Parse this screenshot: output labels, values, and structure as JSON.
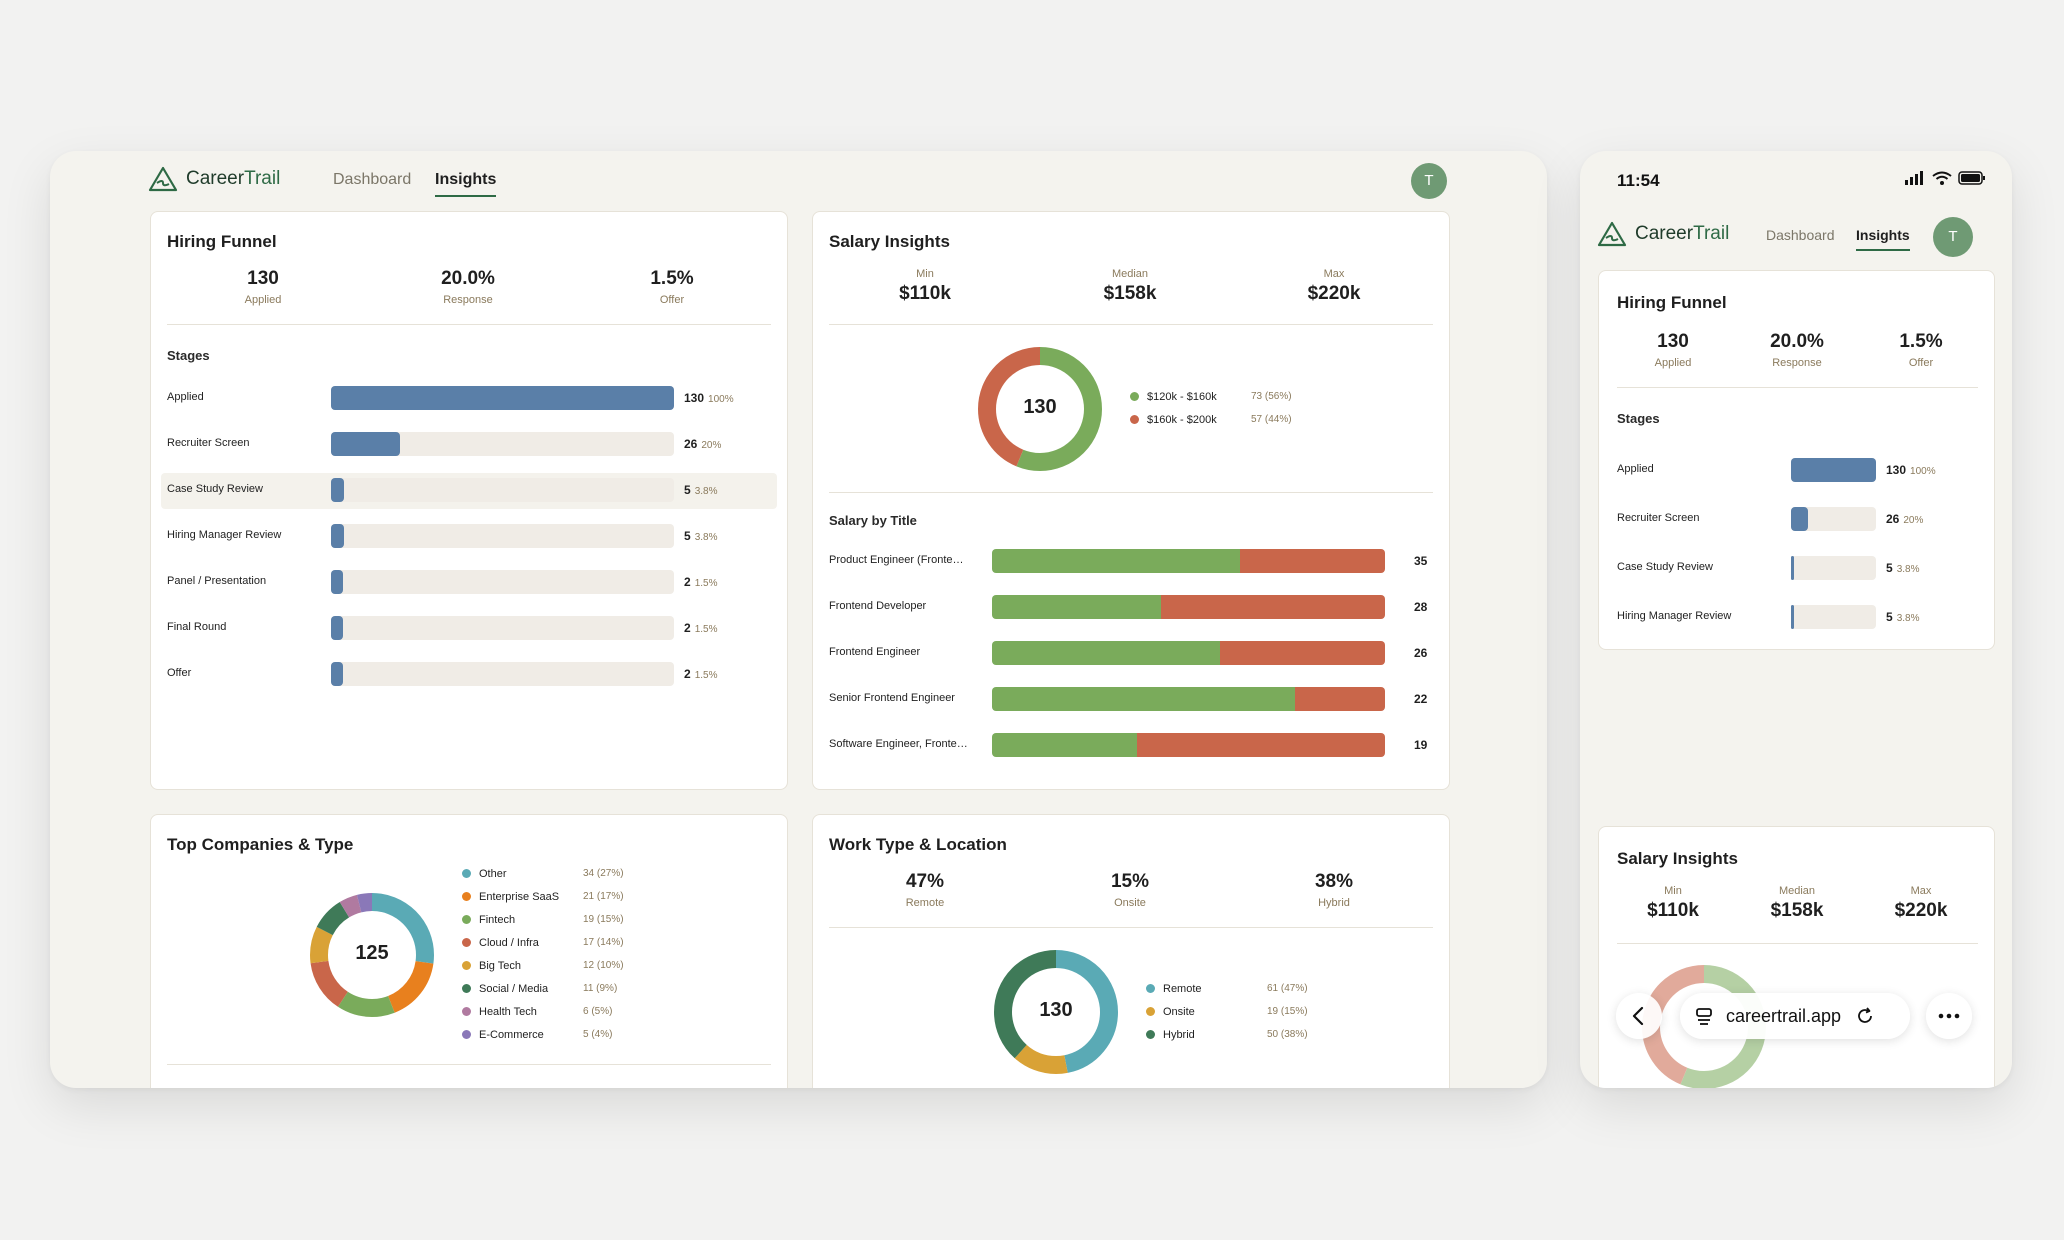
{
  "app": {
    "brand_a": "Career",
    "brand_b": "Trail",
    "avatar_initial": "T"
  },
  "nav": {
    "dashboard": "Dashboard",
    "insights": "Insights"
  },
  "hiring_funnel": {
    "title": "Hiring Funnel",
    "stats": [
      {
        "value": "130",
        "label": "Applied"
      },
      {
        "value": "20.0%",
        "label": "Response"
      },
      {
        "value": "1.5%",
        "label": "Offer"
      }
    ],
    "stages_title": "Stages",
    "stages": [
      {
        "label": "Applied",
        "count": "130",
        "pct": "100%",
        "fraction": 1.0
      },
      {
        "label": "Recruiter Screen",
        "count": "26",
        "pct": "20%",
        "fraction": 0.2
      },
      {
        "label": "Case Study Review",
        "count": "5",
        "pct": "3.8%",
        "fraction": 0.038
      },
      {
        "label": "Hiring Manager Review",
        "count": "5",
        "pct": "3.8%",
        "fraction": 0.038
      },
      {
        "label": "Panel / Presentation",
        "count": "2",
        "pct": "1.5%",
        "fraction": 0.015
      },
      {
        "label": "Final Round",
        "count": "2",
        "pct": "1.5%",
        "fraction": 0.015
      },
      {
        "label": "Offer",
        "count": "2",
        "pct": "1.5%",
        "fraction": 0.015
      }
    ]
  },
  "salary_insights": {
    "title": "Salary Insights",
    "stats": [
      {
        "label": "Min",
        "value": "$110k"
      },
      {
        "label": "Median",
        "value": "$158k"
      },
      {
        "label": "Max",
        "value": "$220k"
      }
    ],
    "donut_total": "130",
    "ranges": [
      {
        "name": "$120k - $160k",
        "pct": "73 (56%)",
        "value": 73,
        "color": "#7aab5b"
      },
      {
        "name": "$160k - $200k",
        "pct": "57 (44%)",
        "value": 57,
        "color": "#c9664a"
      }
    ],
    "by_title_heading": "Salary by Title",
    "by_title": [
      {
        "title": "Product Engineer (Fronte…",
        "count": "35",
        "green_fraction": 0.63
      },
      {
        "title": "Frontend Developer",
        "count": "28",
        "green_fraction": 0.43
      },
      {
        "title": "Frontend Engineer",
        "count": "26",
        "green_fraction": 0.58
      },
      {
        "title": "Senior Frontend Engineer",
        "count": "22",
        "green_fraction": 0.77
      },
      {
        "title": "Software Engineer, Fronte…",
        "count": "19",
        "green_fraction": 0.37
      }
    ]
  },
  "top_companies": {
    "title": "Top Companies & Type",
    "donut_total": "125",
    "types": [
      {
        "name": "Other",
        "pct": "34 (27%)",
        "value": 34,
        "color": "#5aaab5"
      },
      {
        "name": "Enterprise SaaS",
        "pct": "21 (17%)",
        "value": 21,
        "color": "#e8801e"
      },
      {
        "name": "Fintech",
        "pct": "19 (15%)",
        "value": 19,
        "color": "#7aab5b"
      },
      {
        "name": "Cloud / Infra",
        "pct": "17 (14%)",
        "value": 17,
        "color": "#c9664a"
      },
      {
        "name": "Big Tech",
        "pct": "12 (10%)",
        "value": 12,
        "color": "#d9a236"
      },
      {
        "name": "Social / Media",
        "pct": "11 (9%)",
        "value": 11,
        "color": "#3f7a58"
      },
      {
        "name": "Health Tech",
        "pct": "6 (5%)",
        "value": 6,
        "color": "#b07aa0"
      },
      {
        "name": "E-Commerce",
        "pct": "5 (4%)",
        "value": 5,
        "color": "#8a78b8"
      }
    ]
  },
  "work_type": {
    "title": "Work Type & Location",
    "stats": [
      {
        "value": "47%",
        "label": "Remote"
      },
      {
        "value": "15%",
        "label": "Onsite"
      },
      {
        "value": "38%",
        "label": "Hybrid"
      }
    ],
    "donut_total": "130",
    "types": [
      {
        "name": "Remote",
        "pct": "61 (47%)",
        "value": 61,
        "color": "#5aaab5"
      },
      {
        "name": "Onsite",
        "pct": "19 (15%)",
        "value": 19,
        "color": "#d9a236"
      },
      {
        "name": "Hybrid",
        "pct": "50 (38%)",
        "value": 50,
        "color": "#3f7a58"
      }
    ]
  },
  "phone": {
    "time": "11:54",
    "url": "careertrail.app"
  }
}
